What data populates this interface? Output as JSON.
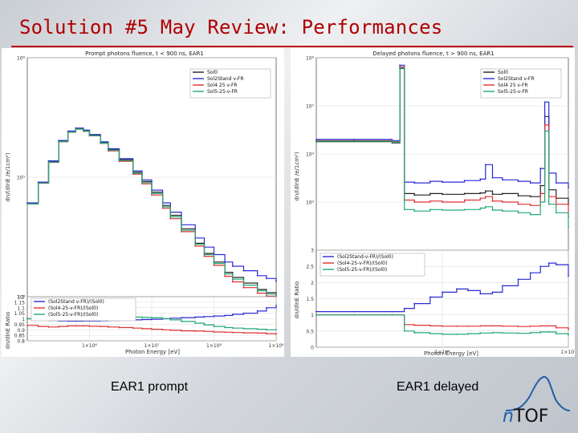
{
  "slide": {
    "title": "Solution #5 May Review: Performances",
    "captions": {
      "left": "EAR1 prompt",
      "right": "EAR1 delayed"
    },
    "logo": {
      "prefix": "n",
      "suffix": "TOF"
    }
  },
  "colors": {
    "Sol0": "#222222",
    "Sol2Stand v-FR": "#2a2ad6",
    "Sol4 25 v-FR": "#e03030",
    "Sol5-25-v-FR": "#20a878",
    "title": "#b00000"
  },
  "chart_data": [
    {
      "type": "line",
      "title": "Prompt photons fluence, t < 900 ns, EAR1",
      "ylabel": "dn/(dlnE /e/1cm²)",
      "xscale": "log",
      "yscale": "log",
      "xlim": [
        100000.0,
        1000000000.0
      ],
      "ylim": [
        10000.0,
        1000000.0
      ],
      "yticks": [
        {
          "v": 1000000.0,
          "label": "10⁶"
        },
        {
          "v": 100000.0,
          "label": "10⁵"
        },
        {
          "v": 10000.0,
          "label": "10⁴"
        }
      ],
      "legend_position": "top-right",
      "x": [
        100000.0,
        150000.0,
        220000.0,
        320000.0,
        450000.0,
        600000.0,
        800000.0,
        1000000.0,
        1500000.0,
        2000000.0,
        3000000.0,
        5000000.0,
        7000000.0,
        10000000.0,
        15000000.0,
        20000000.0,
        30000000.0,
        50000000.0,
        70000000.0,
        100000000.0,
        150000000.0,
        200000000.0,
        300000000.0,
        500000000.0,
        700000000.0,
        1000000000.0
      ],
      "series": [
        {
          "name": "Sol0",
          "values": [
            60000,
            90000,
            135000,
            200000,
            240000,
            255000,
            245000,
            225000,
            195000,
            170000,
            140000,
            110000,
            92000,
            75000,
            58000,
            48000,
            37000,
            28000,
            23000,
            19500,
            16000,
            14500,
            13000,
            11500,
            10800,
            10200
          ]
        },
        {
          "name": "Sol2Stand v-FR",
          "values": [
            61000,
            91000,
            137000,
            203000,
            243000,
            258000,
            248000,
            228000,
            198000,
            173000,
            143000,
            113000,
            95000,
            78000,
            61000,
            51000,
            40000,
            31000,
            26000,
            22500,
            19500,
            18000,
            16500,
            15000,
            14200,
            13500
          ]
        },
        {
          "name": "Sol4 25 v-FR",
          "values": [
            60000,
            89000,
            133000,
            198000,
            238000,
            252000,
            242000,
            222000,
            192000,
            166000,
            136000,
            106000,
            88000,
            71000,
            55000,
            45000,
            35000,
            26500,
            21800,
            18300,
            14800,
            13300,
            11900,
            10700,
            10100,
            9600
          ]
        },
        {
          "name": "Sol5-25-v-FR",
          "values": [
            60000,
            89500,
            134000,
            199000,
            239000,
            253000,
            243000,
            223000,
            193000,
            168000,
            138000,
            108000,
            90000,
            73000,
            56500,
            46500,
            36000,
            27500,
            22500,
            19000,
            15500,
            14000,
            12500,
            11200,
            10500,
            10000
          ]
        }
      ]
    },
    {
      "type": "line",
      "ylabel": "dn/dlnE Ratio",
      "xlabel": "Photon Energy [eV]",
      "xscale": "log",
      "xlim": [
        100000.0,
        1000000000.0
      ],
      "ylim": [
        0.8,
        1.2
      ],
      "yticks": [
        1.2,
        1.15,
        1.1,
        1.05,
        1,
        0.95,
        0.9,
        0.85,
        0.8
      ],
      "xticks": [
        {
          "v": 1000000.0,
          "label": "1×10⁶"
        },
        {
          "v": 10000000.0,
          "label": "1×10⁷"
        },
        {
          "v": 100000000.0,
          "label": "1×10⁸"
        },
        {
          "v": 1000000000.0,
          "label": "1×10⁹"
        }
      ],
      "legend_position": "top-left",
      "x": [
        100000.0,
        150000.0,
        220000.0,
        320000.0,
        450000.0,
        600000.0,
        800000.0,
        1000000.0,
        1500000.0,
        2000000.0,
        3000000.0,
        5000000.0,
        7000000.0,
        10000000.0,
        15000000.0,
        20000000.0,
        30000000.0,
        50000000.0,
        70000000.0,
        100000000.0,
        150000000.0,
        200000000.0,
        300000000.0,
        500000000.0,
        700000000.0,
        1000000000.0
      ],
      "series": [
        {
          "name": "(Sol2Stand v-FR)/(Sol0)",
          "values": [
            1.0,
            0.99,
            0.985,
            0.98,
            0.978,
            0.978,
            0.98,
            0.98,
            0.982,
            0.984,
            0.986,
            0.99,
            0.993,
            0.995,
            1.0,
            1.005,
            1.01,
            1.015,
            1.02,
            1.025,
            1.03,
            1.04,
            1.05,
            1.07,
            1.1,
            1.12
          ]
        },
        {
          "name": "(Sol4-25-v-FR)/(Sol0)",
          "values": [
            0.94,
            0.93,
            0.925,
            0.93,
            0.935,
            0.935,
            0.935,
            0.932,
            0.93,
            0.925,
            0.92,
            0.915,
            0.91,
            0.905,
            0.9,
            0.895,
            0.89,
            0.888,
            0.885,
            0.88,
            0.878,
            0.875,
            0.872,
            0.87,
            0.865,
            0.86
          ]
        },
        {
          "name": "(Sol5-25-v-FR)/(Sol0)",
          "values": [
            1.0,
            0.99,
            0.985,
            0.988,
            0.992,
            0.995,
            0.998,
            1.0,
            1.004,
            1.008,
            1.012,
            1.015,
            1.012,
            1.008,
            1.0,
            0.99,
            0.975,
            0.96,
            0.945,
            0.93,
            0.92,
            0.915,
            0.91,
            0.905,
            0.9,
            0.9
          ]
        }
      ]
    },
    {
      "type": "line",
      "title": "Delayed photons fluence, t > 900 ns, EAR1",
      "ylabel": "dn/(dlnE /e/1cm²)",
      "xscale": "log",
      "yscale": "log",
      "xlim": [
        100000.0,
        10000000.0
      ],
      "ylim": [
        100.0,
        1000000.0
      ],
      "yticks": [
        {
          "v": 1000000.0,
          "label": "10⁶"
        },
        {
          "v": 100000.0,
          "label": "10⁵"
        },
        {
          "v": 10000.0,
          "label": "10⁴"
        },
        {
          "v": 1000.0,
          "label": "10³"
        }
      ],
      "legend_position": "top-right",
      "x": [
        100000.0,
        200000.0,
        400000.0,
        460000.0,
        500000.0,
        600000.0,
        800000.0,
        1000000.0,
        1500000.0,
        2000000.0,
        2200000.0,
        2500000.0,
        3000000.0,
        4000000.0,
        5000000.0,
        6000000.0,
        6500000.0,
        7000000.0,
        8000000.0,
        10000000.0
      ],
      "series": [
        {
          "name": "Sol0",
          "values": [
            18000,
            18000,
            17000,
            600000,
            1500,
            1400,
            1500,
            1450,
            1500,
            1550,
            1700,
            1450,
            1500,
            1350,
            1300,
            2200,
            60000,
            1800,
            1200,
            900
          ]
        },
        {
          "name": "Sol2Stand v-FR",
          "values": [
            20000,
            20000,
            19000,
            700000,
            2600,
            2500,
            2700,
            2600,
            2800,
            3000,
            6000,
            3200,
            2900,
            2700,
            2500,
            5000,
            120000,
            4000,
            2500,
            2000
          ]
        },
        {
          "name": "Sol4 25 v-FR",
          "values": [
            19000,
            19000,
            18000,
            650000,
            1100,
            1000,
            1050,
            1000,
            1100,
            1200,
            1300,
            1050,
            1000,
            900,
            850,
            1500,
            40000,
            1300,
            900,
            500
          ]
        },
        {
          "name": "Sol5-25-v-FR",
          "values": [
            18500,
            18500,
            17500,
            620000,
            700,
            650,
            700,
            680,
            700,
            750,
            800,
            680,
            650,
            600,
            550,
            1000,
            30000,
            900,
            600,
            300
          ]
        }
      ]
    },
    {
      "type": "line",
      "ylabel": "dn/dlnE Ratio",
      "xlabel": "Photon Energy [eV]",
      "xscale": "log",
      "xlim": [
        100000.0,
        10000000.0
      ],
      "ylim": [
        0,
        3
      ],
      "yticks": [
        3,
        2.5,
        2,
        1.5,
        1,
        0.5,
        0
      ],
      "xticks": [
        {
          "v": 1000000.0,
          "label": "1×10⁶"
        },
        {
          "v": 10000000.0,
          "label": "1×10⁷"
        }
      ],
      "legend_position": "top-left",
      "x": [
        100000.0,
        200000.0,
        400000.0,
        500000.0,
        600000.0,
        800000.0,
        1000000.0,
        1300000.0,
        1600000.0,
        2000000.0,
        2500000.0,
        3000000.0,
        4000000.0,
        5000000.0,
        6000000.0,
        7000000.0,
        8000000.0,
        10000000.0
      ],
      "series": [
        {
          "name": "(Sol2Stand-v-FR)/(Sol0)",
          "values": [
            1.1,
            1.1,
            1.1,
            1.2,
            1.35,
            1.55,
            1.7,
            1.8,
            1.75,
            1.65,
            1.7,
            1.9,
            2.1,
            2.3,
            2.5,
            2.6,
            2.55,
            2.2
          ]
        },
        {
          "name": "(Sol4-25-v-FR)/(Sol0)",
          "values": [
            1.0,
            1.0,
            1.0,
            0.7,
            0.68,
            0.66,
            0.65,
            0.65,
            0.65,
            0.66,
            0.66,
            0.65,
            0.64,
            0.65,
            0.66,
            0.66,
            0.6,
            0.55
          ]
        },
        {
          "name": "(Sol5-25-v-FR)/(Sol0)",
          "values": [
            1.0,
            1.0,
            1.0,
            0.5,
            0.45,
            0.42,
            0.4,
            0.4,
            0.42,
            0.44,
            0.45,
            0.44,
            0.43,
            0.45,
            0.47,
            0.47,
            0.42,
            0.38
          ]
        }
      ]
    }
  ]
}
